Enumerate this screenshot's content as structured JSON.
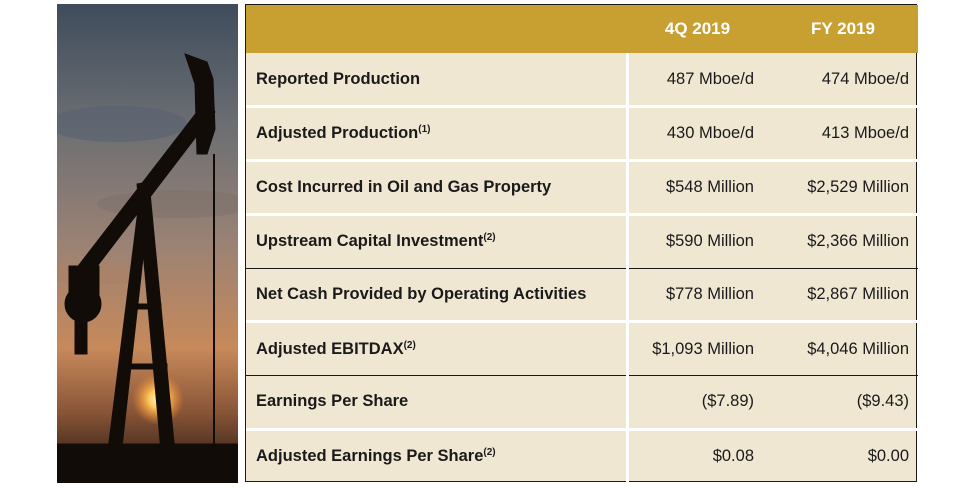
{
  "table": {
    "headers": [
      "",
      "4Q 2019",
      "FY 2019"
    ],
    "rows": [
      {
        "label": "Reported Production",
        "note": "",
        "q4": "487 Mboe/d",
        "fy": "474 Mboe/d"
      },
      {
        "label": "Adjusted Production",
        "note": "(1)",
        "q4": "430 Mboe/d",
        "fy": "413 Mboe/d"
      },
      {
        "label": "Cost Incurred in Oil and Gas Property",
        "note": "",
        "q4": "$548 Million",
        "fy": "$2,529 Million"
      },
      {
        "label": "Upstream Capital Investment",
        "note": "(2)",
        "q4": "$590 Million",
        "fy": "$2,366 Million"
      },
      {
        "label": "Net Cash Provided by Operating Activities",
        "note": "",
        "q4": "$778 Million",
        "fy": "$2,867 Million"
      },
      {
        "label": "Adjusted EBITDAX",
        "note": "(2)",
        "q4": "$1,093 Million",
        "fy": "$4,046 Million"
      },
      {
        "label": "Earnings Per Share",
        "note": "",
        "q4": "($7.89)",
        "fy": "($9.43)"
      },
      {
        "label": "Adjusted Earnings Per Share",
        "note": "(2)",
        "q4": "$0.08",
        "fy": "$0.00"
      }
    ]
  },
  "colors": {
    "header_gold": "#c8a032",
    "row_beige": "#efe7d2"
  },
  "image": {
    "subject": "oil pumpjack silhouette at sunset"
  }
}
